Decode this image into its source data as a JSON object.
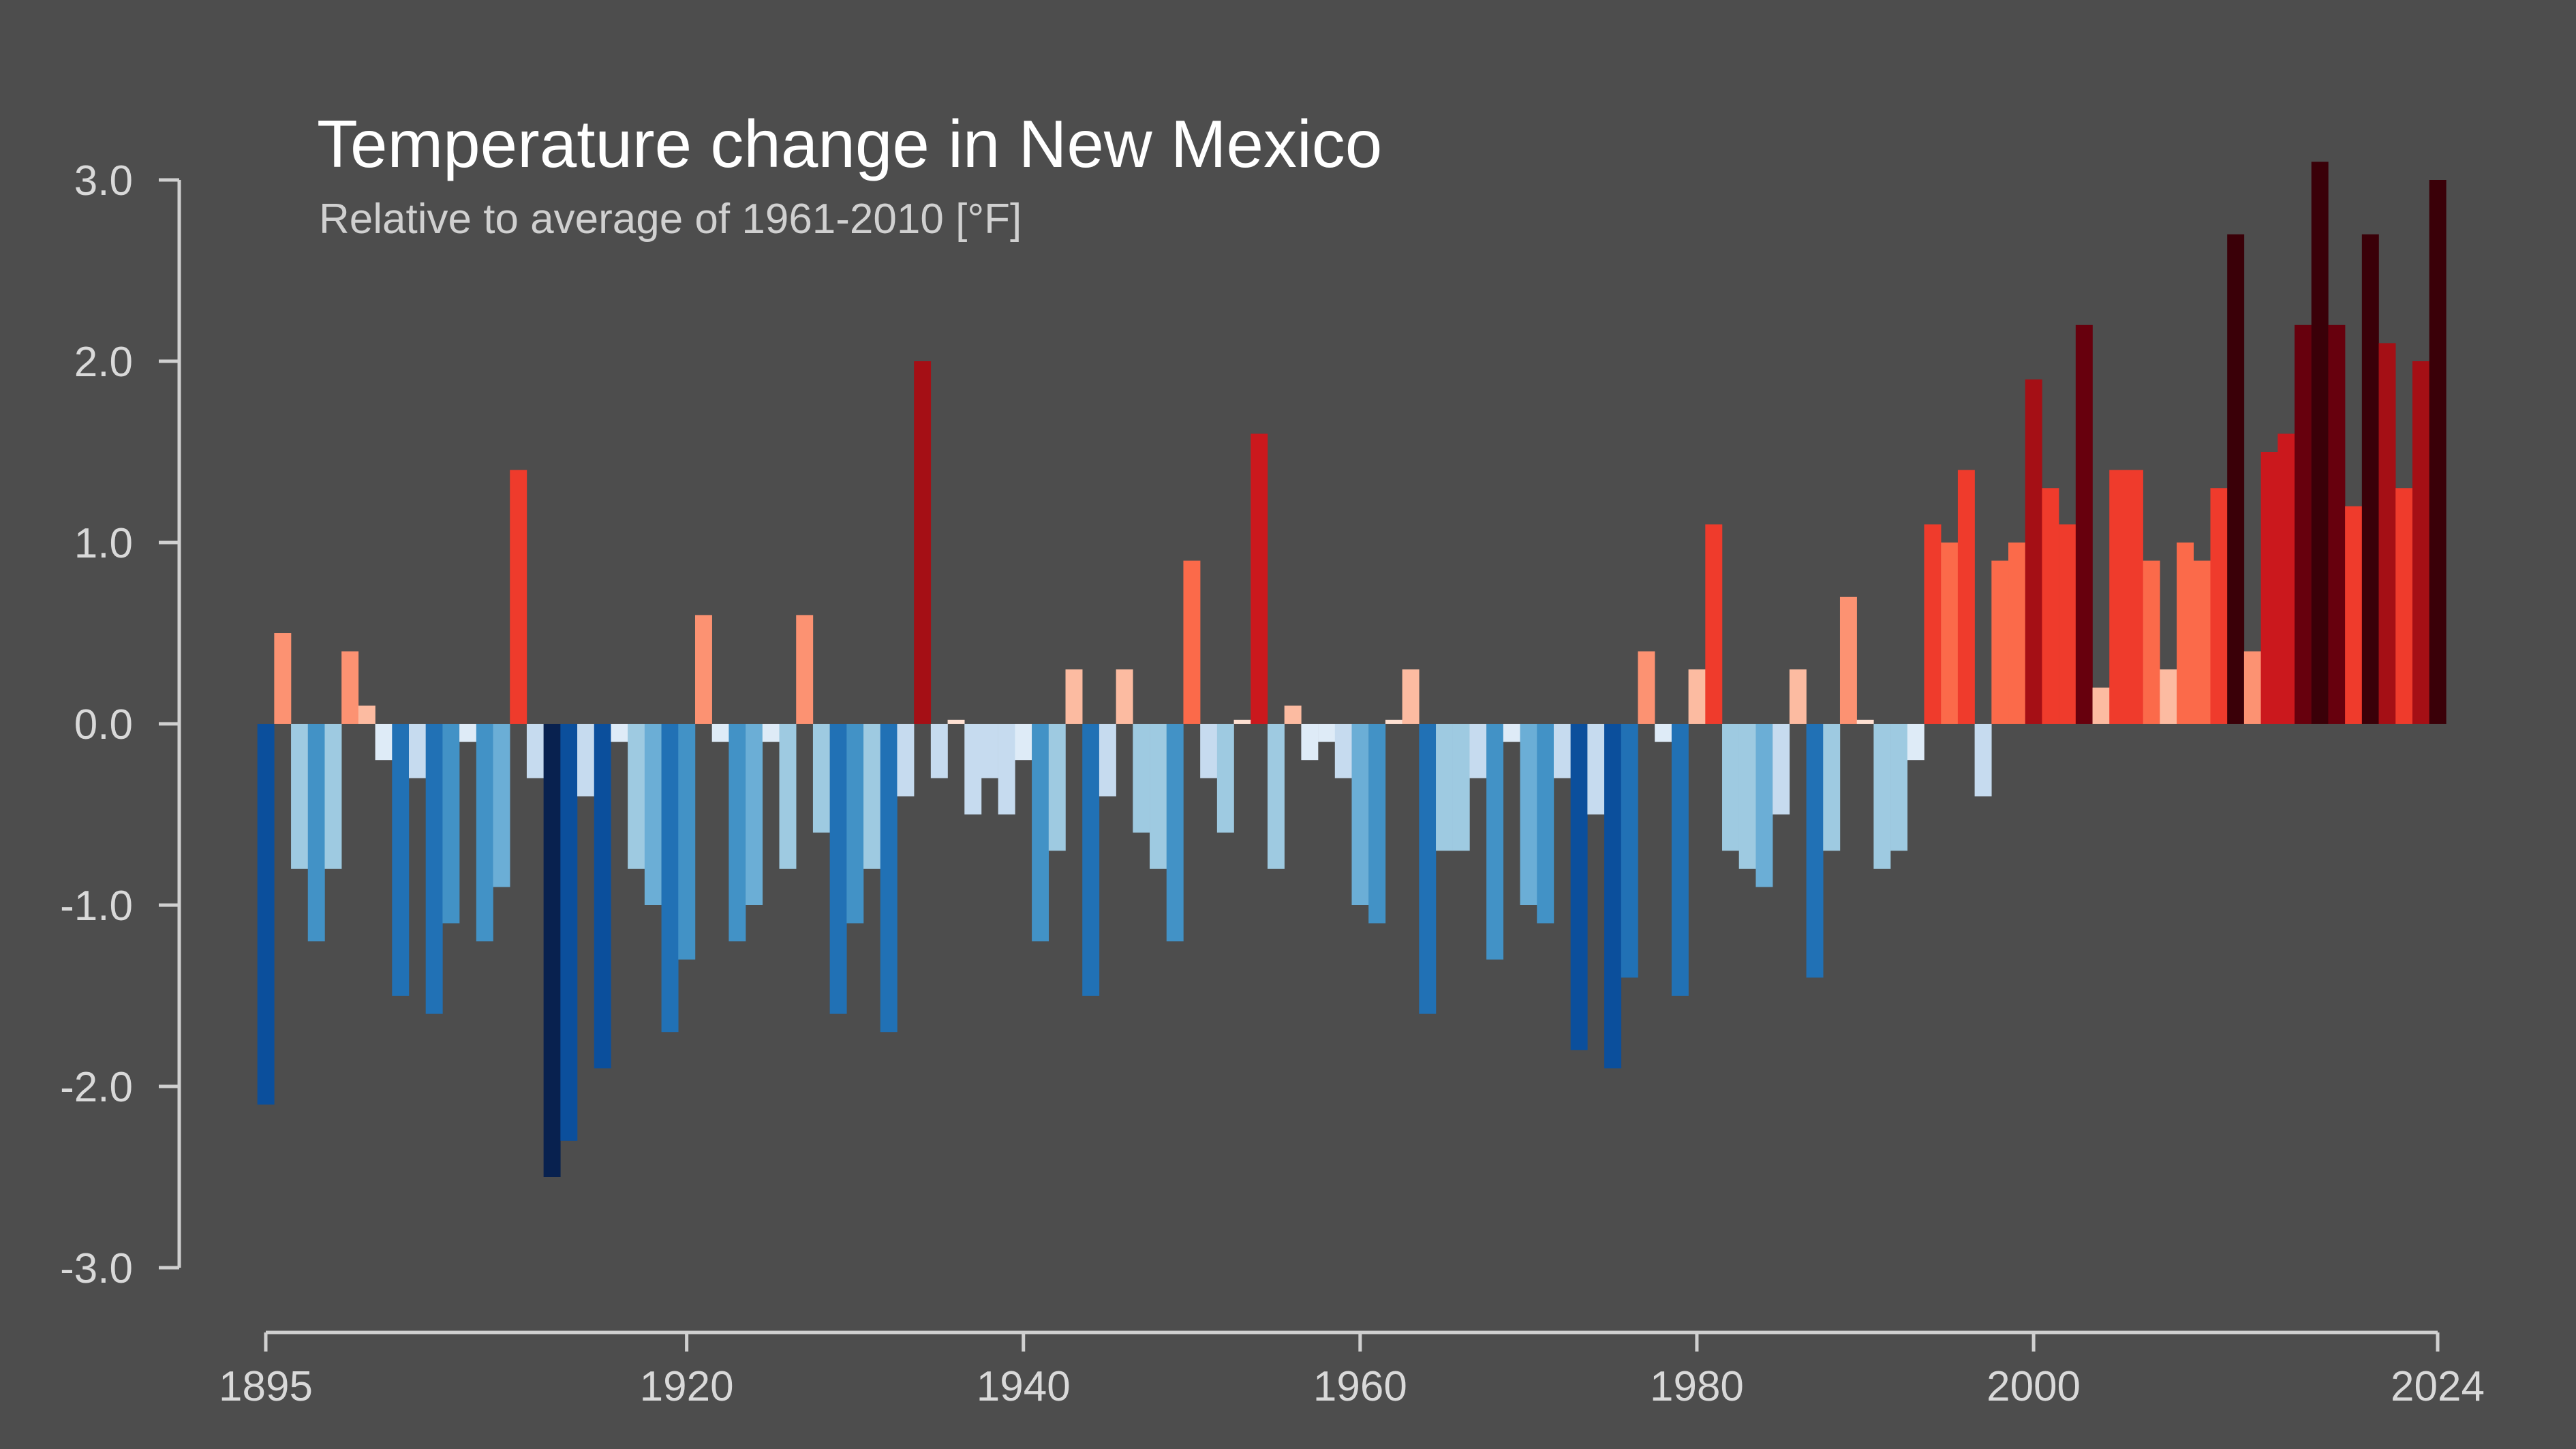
{
  "chart_data": {
    "type": "bar",
    "title": "Temperature change in New Mexico",
    "subtitle": "Relative to average of 1961-2010  [°F]",
    "xlabel": "",
    "ylabel": "",
    "ylim": [
      -3.0,
      3.0
    ],
    "xlim": [
      1895,
      2024
    ],
    "y_ticks": [
      "3.0",
      "2.0",
      "1.0",
      "0.0",
      "-1.0",
      "-2.0",
      "-3.0"
    ],
    "x_ticks": [
      "1895",
      "1920",
      "1940",
      "1960",
      "1980",
      "2000",
      "2024"
    ],
    "grid": false,
    "color_scale": "blue-white-red (warming stripes palette)",
    "x": [
      1895,
      1896,
      1897,
      1898,
      1899,
      1900,
      1901,
      1902,
      1903,
      1904,
      1905,
      1906,
      1907,
      1908,
      1909,
      1910,
      1911,
      1912,
      1913,
      1914,
      1915,
      1916,
      1917,
      1918,
      1919,
      1920,
      1921,
      1922,
      1923,
      1924,
      1925,
      1926,
      1927,
      1928,
      1929,
      1930,
      1931,
      1932,
      1933,
      1934,
      1935,
      1936,
      1937,
      1938,
      1939,
      1940,
      1941,
      1942,
      1943,
      1944,
      1945,
      1946,
      1947,
      1948,
      1949,
      1950,
      1951,
      1952,
      1953,
      1954,
      1955,
      1956,
      1957,
      1958,
      1959,
      1960,
      1961,
      1962,
      1963,
      1964,
      1965,
      1966,
      1967,
      1968,
      1969,
      1970,
      1971,
      1972,
      1973,
      1974,
      1975,
      1976,
      1977,
      1978,
      1979,
      1980,
      1981,
      1982,
      1983,
      1984,
      1985,
      1986,
      1987,
      1988,
      1989,
      1990,
      1991,
      1992,
      1993,
      1994,
      1995,
      1996,
      1997,
      1998,
      1999,
      2000,
      2001,
      2002,
      2003,
      2004,
      2005,
      2006,
      2007,
      2008,
      2009,
      2010,
      2011,
      2012,
      2013,
      2014,
      2015,
      2016,
      2017,
      2018,
      2019,
      2020,
      2021,
      2022,
      2023,
      2024
    ],
    "values": [
      -2.1,
      0.5,
      -0.8,
      -1.2,
      -0.8,
      0.4,
      0.1,
      -0.2,
      -1.5,
      -0.3,
      -1.6,
      -1.1,
      -0.1,
      -1.2,
      -0.9,
      1.4,
      -0.3,
      -2.5,
      -2.3,
      -0.4,
      -1.9,
      -0.1,
      -0.8,
      -1.0,
      -1.7,
      -1.3,
      0.6,
      -0.1,
      -1.2,
      -1.0,
      -0.1,
      -0.8,
      0.6,
      -0.6,
      -1.6,
      -1.1,
      -0.8,
      -1.7,
      -0.4,
      2.0,
      -0.3,
      0.0,
      -0.5,
      -0.3,
      -0.5,
      -0.2,
      -1.2,
      -0.7,
      0.3,
      -1.5,
      -0.4,
      0.3,
      -0.6,
      -0.8,
      -1.2,
      0.9,
      -0.3,
      -0.6,
      0.0,
      1.6,
      -0.8,
      0.1,
      -0.2,
      -0.1,
      -0.3,
      -1.0,
      -1.1,
      0.0,
      0.3,
      -1.6,
      -0.7,
      -0.7,
      -0.3,
      -1.3,
      -0.1,
      -1.0,
      -1.1,
      -0.3,
      -1.8,
      -0.5,
      -1.9,
      -1.4,
      0.4,
      -0.1,
      -1.5,
      0.3,
      1.1,
      -0.7,
      -0.8,
      -0.9,
      -0.5,
      0.3,
      -1.4,
      -0.7,
      0.7,
      0.0,
      -0.8,
      -0.7,
      -0.2,
      1.1,
      1.0,
      1.4,
      -0.4,
      0.9,
      1.0,
      1.9,
      1.3,
      1.1,
      2.2,
      0.2,
      1.4,
      1.4,
      0.9,
      0.3,
      1.0,
      0.9,
      1.3,
      2.7,
      0.4,
      1.5,
      1.6,
      2.2,
      3.1,
      2.2,
      1.2,
      2.7,
      2.1,
      1.3,
      2.0,
      3.0
    ]
  }
}
